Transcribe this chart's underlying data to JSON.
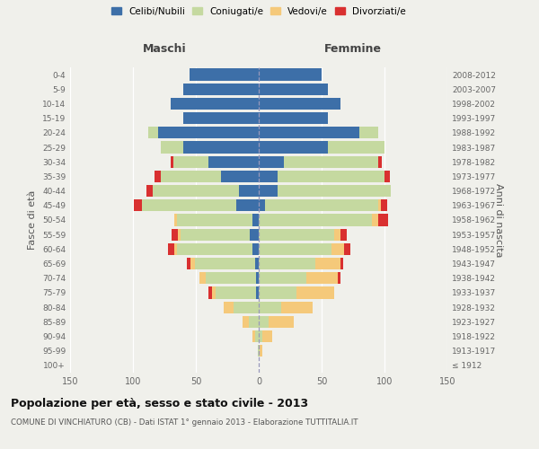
{
  "age_groups": [
    "100+",
    "95-99",
    "90-94",
    "85-89",
    "80-84",
    "75-79",
    "70-74",
    "65-69",
    "60-64",
    "55-59",
    "50-54",
    "45-49",
    "40-44",
    "35-39",
    "30-34",
    "25-29",
    "20-24",
    "15-19",
    "10-14",
    "5-9",
    "0-4"
  ],
  "birth_years": [
    "≤ 1912",
    "1913-1917",
    "1918-1922",
    "1923-1927",
    "1928-1932",
    "1933-1937",
    "1938-1942",
    "1943-1947",
    "1948-1952",
    "1953-1957",
    "1958-1962",
    "1963-1967",
    "1968-1972",
    "1973-1977",
    "1978-1982",
    "1983-1987",
    "1988-1992",
    "1993-1997",
    "1998-2002",
    "2003-2007",
    "2008-2012"
  ],
  "males": {
    "celibi": [
      0,
      0,
      0,
      0,
      0,
      2,
      2,
      3,
      5,
      7,
      5,
      18,
      16,
      30,
      40,
      60,
      80,
      60,
      70,
      60,
      55
    ],
    "coniugati": [
      0,
      1,
      3,
      8,
      20,
      32,
      40,
      48,
      60,
      55,
      60,
      75,
      68,
      48,
      28,
      18,
      8,
      0,
      0,
      0,
      0
    ],
    "vedovi": [
      0,
      0,
      2,
      5,
      8,
      3,
      5,
      3,
      2,
      2,
      2,
      0,
      0,
      0,
      0,
      0,
      0,
      0,
      0,
      0,
      0
    ],
    "divorziati": [
      0,
      0,
      0,
      0,
      0,
      3,
      0,
      3,
      5,
      5,
      0,
      6,
      5,
      5,
      2,
      0,
      0,
      0,
      0,
      0,
      0
    ]
  },
  "females": {
    "nubili": [
      0,
      0,
      0,
      0,
      0,
      0,
      0,
      0,
      0,
      0,
      0,
      5,
      15,
      15,
      20,
      55,
      80,
      55,
      65,
      55,
      50
    ],
    "coniugate": [
      0,
      1,
      3,
      8,
      18,
      30,
      38,
      45,
      58,
      60,
      90,
      90,
      90,
      85,
      75,
      45,
      15,
      0,
      0,
      0,
      0
    ],
    "vedove": [
      0,
      2,
      8,
      20,
      25,
      30,
      25,
      20,
      10,
      5,
      5,
      2,
      0,
      0,
      0,
      0,
      0,
      0,
      0,
      0,
      0
    ],
    "divorziate": [
      0,
      0,
      0,
      0,
      0,
      0,
      2,
      2,
      5,
      5,
      8,
      5,
      0,
      4,
      3,
      0,
      0,
      0,
      0,
      0,
      0
    ]
  },
  "colors": {
    "celibi": "#3d6fa8",
    "coniugati": "#c5d9a0",
    "vedovi": "#f5c97a",
    "divorziati": "#d93030"
  },
  "title": "Popolazione per età, sesso e stato civile - 2013",
  "subtitle": "COMUNE DI VINCHIATURO (CB) - Dati ISTAT 1° gennaio 2013 - Elaborazione TUTTITALIA.IT",
  "xlabel_left": "Maschi",
  "xlabel_right": "Femmine",
  "ylabel_left": "Fasce di età",
  "ylabel_right": "Anni di nascita",
  "xlim": 150,
  "legend_labels": [
    "Celibi/Nubili",
    "Coniugati/e",
    "Vedovi/e",
    "Divorziati/e"
  ],
  "background_color": "#f0f0eb"
}
